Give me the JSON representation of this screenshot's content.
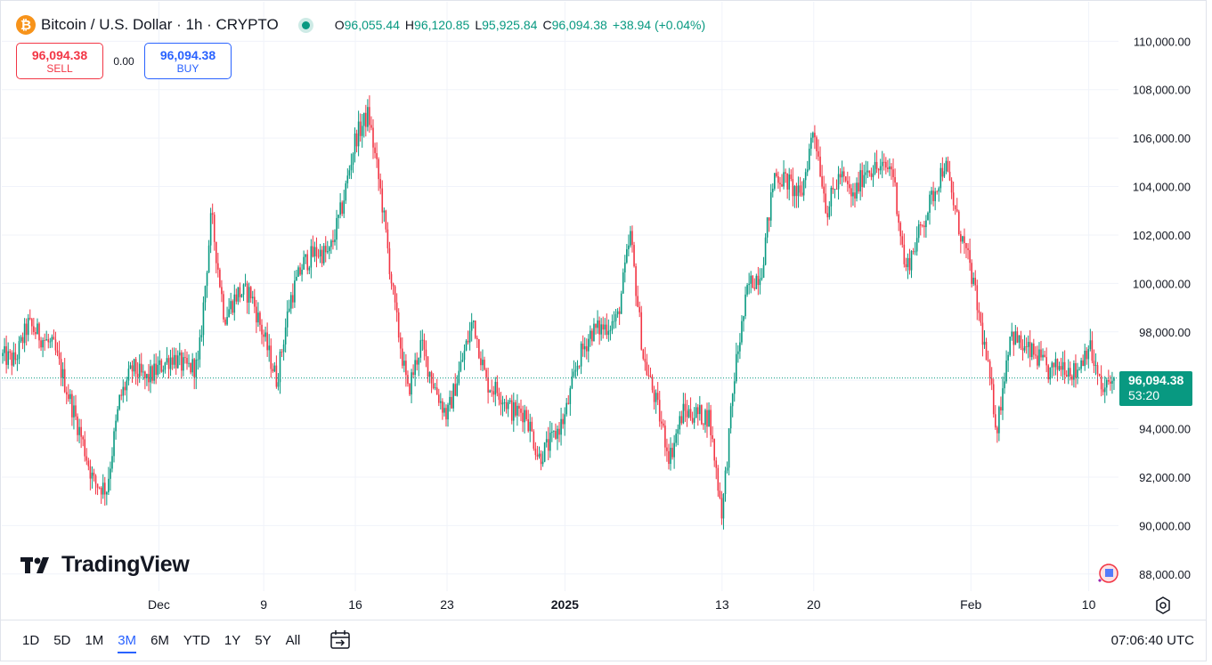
{
  "header": {
    "icon_glyph": "₿",
    "title": "Bitcoin / U.S. Dollar · 1h · CRYPTO",
    "ohlc": [
      {
        "label": "O",
        "value": "96,055.44"
      },
      {
        "label": "H",
        "value": "96,120.85"
      },
      {
        "label": "L",
        "value": "95,925.84"
      },
      {
        "label": "C",
        "value": "96,094.38"
      }
    ],
    "change": "+38.94 (+0.04%)"
  },
  "trade": {
    "sell_price": "96,094.38",
    "sell_label": "SELL",
    "spread": "0.00",
    "buy_price": "96,094.38",
    "buy_label": "BUY"
  },
  "watermark": "TradingView",
  "price_tag": {
    "price": "96,094.38",
    "countdown": "53:20"
  },
  "bottom_bar": {
    "ranges": [
      "1D",
      "5D",
      "1M",
      "3M",
      "6M",
      "YTD",
      "1Y",
      "5Y",
      "All"
    ],
    "active_range": "3M",
    "clock": "07:06:40 UTC"
  },
  "colors": {
    "up": "#089981",
    "down": "#f23645",
    "accent": "#2962ff",
    "grid": "#f0f3fa"
  },
  "icons": [
    "bitcoin-icon",
    "status-dot-icon",
    "tradingview-logo-icon",
    "calendar-range-icon",
    "settings-icon",
    "news-icon"
  ],
  "chart_data": {
    "type": "candlestick",
    "title": "Bitcoin / U.S. Dollar · 1h · CRYPTO",
    "ylim": [
      87000,
      110600
    ],
    "y_ticks": [
      "110,000.00",
      "108,000.00",
      "106,000.00",
      "104,000.00",
      "102,000.00",
      "100,000.00",
      "98,000.00",
      "96,000.00",
      "94,000.00",
      "92,000.00",
      "90,000.00",
      "88,000.00"
    ],
    "x_ticks": [
      {
        "label": "Dec",
        "date": "2024-12-01"
      },
      {
        "label": "9",
        "date": "2024-12-09"
      },
      {
        "label": "16",
        "date": "2024-12-16"
      },
      {
        "label": "23",
        "date": "2024-12-23"
      },
      {
        "label": "2025",
        "date": "2025-01-01",
        "bold": true
      },
      {
        "label": "13",
        "date": "2025-01-13"
      },
      {
        "label": "20",
        "date": "2025-01-20"
      },
      {
        "label": "Feb",
        "date": "2025-02-01"
      },
      {
        "label": "10",
        "date": "2025-02-10"
      }
    ],
    "x_range": [
      "2024-11-19",
      "2025-02-12"
    ],
    "last_price": 96094.38,
    "price_path": [
      {
        "date": "2024-11-19",
        "price": 97000
      },
      {
        "date": "2024-11-20",
        "price": 96800
      },
      {
        "date": "2024-11-21",
        "price": 98300
      },
      {
        "date": "2024-11-23",
        "price": 97300
      },
      {
        "date": "2024-11-25",
        "price": 93800
      },
      {
        "date": "2024-11-26",
        "price": 91800
      },
      {
        "date": "2024-11-27",
        "price": 91500
      },
      {
        "date": "2024-11-28",
        "price": 95200
      },
      {
        "date": "2024-11-29",
        "price": 96500
      },
      {
        "date": "2024-11-30",
        "price": 96000
      },
      {
        "date": "2024-12-02",
        "price": 97000
      },
      {
        "date": "2024-12-03",
        "price": 96500
      },
      {
        "date": "2024-12-04",
        "price": 96600
      },
      {
        "date": "2024-12-05",
        "price": 102800
      },
      {
        "date": "2024-12-06",
        "price": 98600
      },
      {
        "date": "2024-12-07",
        "price": 99600
      },
      {
        "date": "2024-12-08",
        "price": 99600
      },
      {
        "date": "2024-12-09",
        "price": 97800
      },
      {
        "date": "2024-12-10",
        "price": 96000
      },
      {
        "date": "2024-12-11",
        "price": 99300
      },
      {
        "date": "2024-12-12",
        "price": 100800
      },
      {
        "date": "2024-12-13",
        "price": 101300
      },
      {
        "date": "2024-12-14",
        "price": 101200
      },
      {
        "date": "2024-12-15",
        "price": 103200
      },
      {
        "date": "2024-12-16",
        "price": 106000
      },
      {
        "date": "2024-12-17",
        "price": 107000
      },
      {
        "date": "2024-12-18",
        "price": 103500
      },
      {
        "date": "2024-12-19",
        "price": 99000
      },
      {
        "date": "2024-12-20",
        "price": 95500
      },
      {
        "date": "2024-12-21",
        "price": 97500
      },
      {
        "date": "2024-12-22",
        "price": 95800
      },
      {
        "date": "2024-12-23",
        "price": 94500
      },
      {
        "date": "2024-12-24",
        "price": 96500
      },
      {
        "date": "2024-12-25",
        "price": 98500
      },
      {
        "date": "2024-12-26",
        "price": 95900
      },
      {
        "date": "2024-12-27",
        "price": 95500
      },
      {
        "date": "2024-12-28",
        "price": 94700
      },
      {
        "date": "2024-12-29",
        "price": 94700
      },
      {
        "date": "2024-12-30",
        "price": 92800
      },
      {
        "date": "2024-12-31",
        "price": 93500
      },
      {
        "date": "2025-01-01",
        "price": 94500
      },
      {
        "date": "2025-01-02",
        "price": 96800
      },
      {
        "date": "2025-01-03",
        "price": 98000
      },
      {
        "date": "2025-01-04",
        "price": 98200
      },
      {
        "date": "2025-01-05",
        "price": 98500
      },
      {
        "date": "2025-01-06",
        "price": 102000
      },
      {
        "date": "2025-01-07",
        "price": 96900
      },
      {
        "date": "2025-01-08",
        "price": 95000
      },
      {
        "date": "2025-01-09",
        "price": 92800
      },
      {
        "date": "2025-01-10",
        "price": 94700
      },
      {
        "date": "2025-01-11",
        "price": 94600
      },
      {
        "date": "2025-01-12",
        "price": 94500
      },
      {
        "date": "2025-01-13",
        "price": 90500
      },
      {
        "date": "2025-01-14",
        "price": 96500
      },
      {
        "date": "2025-01-15",
        "price": 99900
      },
      {
        "date": "2025-01-16",
        "price": 100500
      },
      {
        "date": "2025-01-17",
        "price": 104500
      },
      {
        "date": "2025-01-18",
        "price": 104200
      },
      {
        "date": "2025-01-19",
        "price": 103500
      },
      {
        "date": "2025-01-20",
        "price": 106500
      },
      {
        "date": "2025-01-21",
        "price": 103000
      },
      {
        "date": "2025-01-22",
        "price": 104500
      },
      {
        "date": "2025-01-23",
        "price": 103500
      },
      {
        "date": "2025-01-24",
        "price": 104800
      },
      {
        "date": "2025-01-25",
        "price": 104700
      },
      {
        "date": "2025-01-26",
        "price": 104800
      },
      {
        "date": "2025-01-27",
        "price": 100500
      },
      {
        "date": "2025-01-28",
        "price": 102000
      },
      {
        "date": "2025-01-29",
        "price": 103500
      },
      {
        "date": "2025-01-30",
        "price": 105000
      },
      {
        "date": "2025-01-31",
        "price": 102500
      },
      {
        "date": "2025-02-01",
        "price": 100500
      },
      {
        "date": "2025-02-02",
        "price": 97500
      },
      {
        "date": "2025-02-03",
        "price": 94000
      },
      {
        "date": "2025-02-04",
        "price": 98000
      },
      {
        "date": "2025-02-05",
        "price": 97300
      },
      {
        "date": "2025-02-06",
        "price": 97000
      },
      {
        "date": "2025-02-07",
        "price": 96300
      },
      {
        "date": "2025-02-08",
        "price": 96700
      },
      {
        "date": "2025-02-09",
        "price": 96300
      },
      {
        "date": "2025-02-10",
        "price": 97500
      },
      {
        "date": "2025-02-11",
        "price": 95500
      },
      {
        "date": "2025-02-12",
        "price": 96094.38
      }
    ]
  }
}
